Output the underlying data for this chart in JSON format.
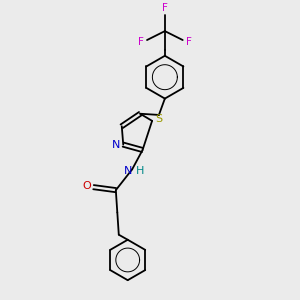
{
  "background_color": "#ebebeb",
  "lw": 1.3,
  "colors": {
    "black": "#000000",
    "blue": "#0000cc",
    "red": "#cc0000",
    "sulfur": "#999900",
    "magenta": "#cc00cc",
    "teal": "#008888"
  },
  "layout": {
    "xlim": [
      0,
      10
    ],
    "ylim": [
      0,
      10
    ]
  }
}
